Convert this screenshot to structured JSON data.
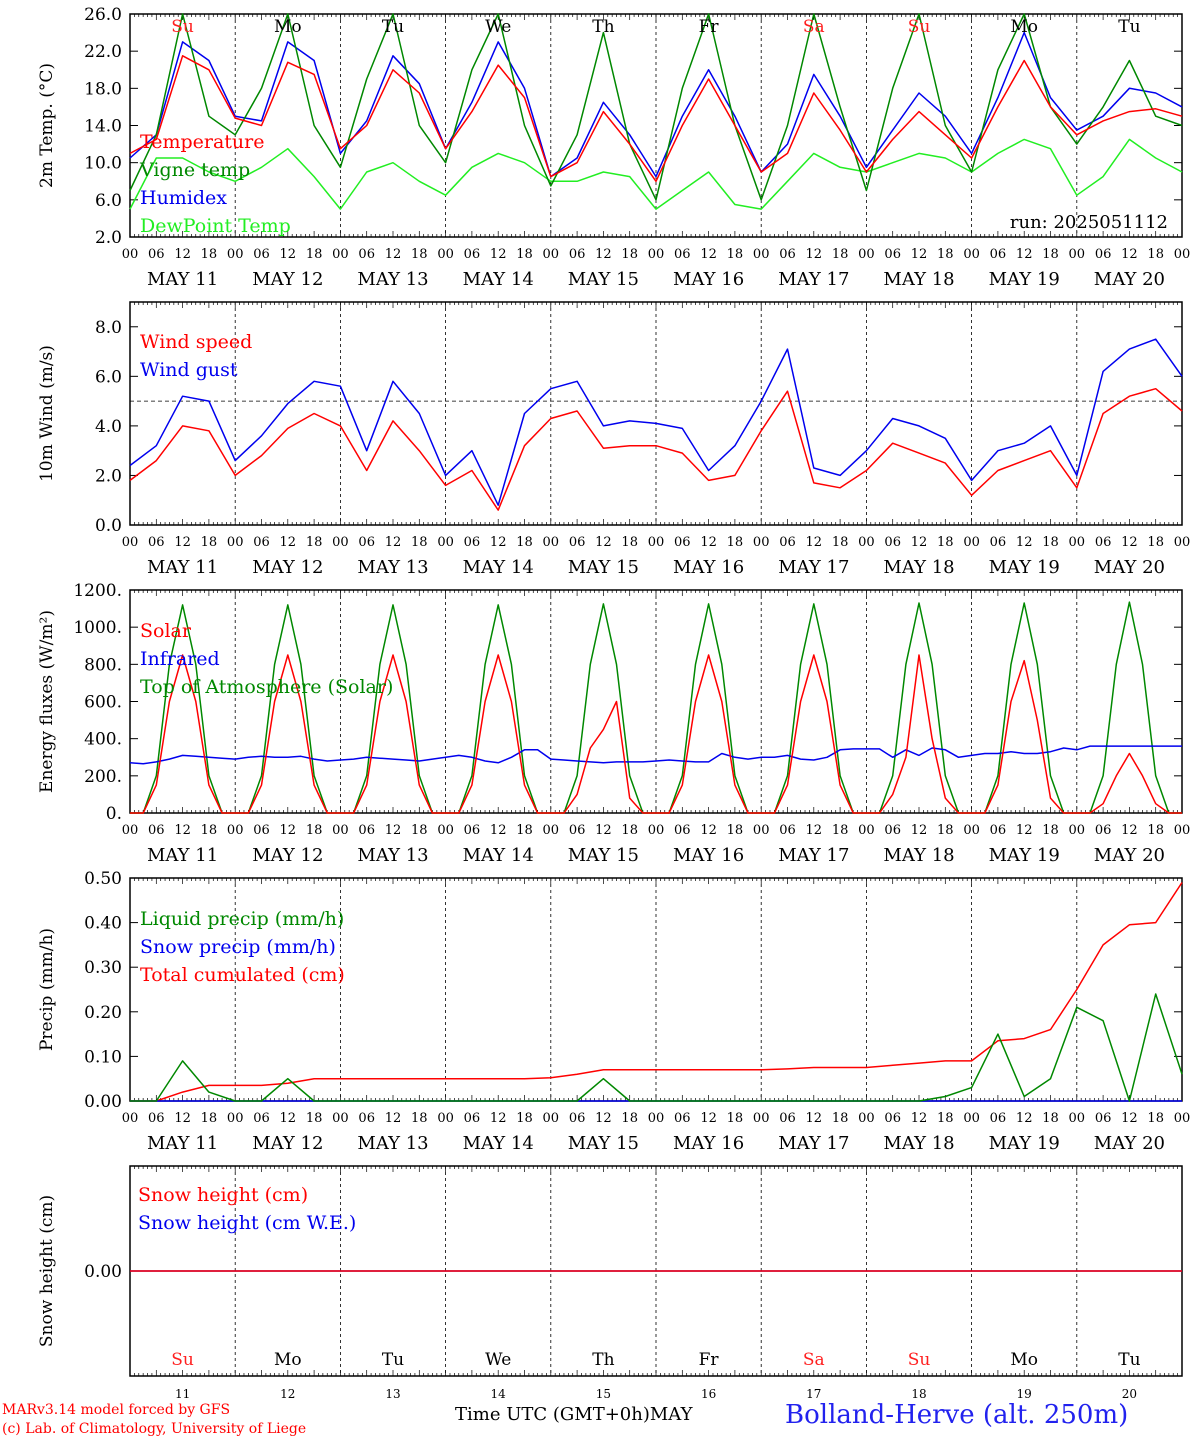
{
  "meta": {
    "run_label": "run: 2025051112",
    "model_credit": "MARv3.14 model forced by GFS",
    "lab_credit": "(c) Lab. of Climatology, University of Liege",
    "x_axis_title": "Time UTC (GMT+0h)",
    "month_label": "MAY",
    "station": "Bolland-Herve (alt. 250m)"
  },
  "time_axis": {
    "hour_ticks": [
      "00",
      "06",
      "12",
      "18"
    ],
    "date_labels": [
      "MAY 11",
      "MAY 12",
      "MAY 13",
      "MAY 14",
      "MAY 15",
      "MAY 16",
      "MAY 17",
      "MAY 18",
      "MAY 19",
      "MAY 20"
    ],
    "day_names": [
      "Su",
      "Mo",
      "Tu",
      "We",
      "Th",
      "Fr",
      "Sa",
      "Su",
      "Mo",
      "Tu"
    ],
    "day_name_colors": [
      "#ff2020",
      "#000000",
      "#000000",
      "#000000",
      "#000000",
      "#000000",
      "#ff2020",
      "#ff2020",
      "#000000",
      "#000000"
    ],
    "day_numbers": [
      "11",
      "12",
      "13",
      "14",
      "15",
      "16",
      "17",
      "18",
      "19",
      "20"
    ]
  },
  "chart_data": [
    {
      "type": "line",
      "ylabel": "2m Temp. (°C)",
      "ylim": [
        2,
        26
      ],
      "yticks": [
        "2.0",
        "6.0",
        "10.0",
        "14.0",
        "18.0",
        "22.0",
        "26.0"
      ],
      "x_hours": [
        0,
        6,
        12,
        18,
        24,
        30,
        36,
        42,
        48,
        54,
        60,
        66,
        72,
        78,
        84,
        90,
        96,
        102,
        108,
        114,
        120,
        126,
        132,
        138,
        144,
        150,
        156,
        162,
        168,
        174,
        180,
        186,
        192,
        198,
        204,
        210,
        216,
        222,
        228,
        234,
        240
      ],
      "series": [
        {
          "name": "Temperature",
          "color": "#ff0000",
          "values": [
            11.0,
            12.5,
            21.5,
            20.0,
            14.8,
            14.0,
            20.8,
            19.5,
            11.5,
            14.0,
            20.0,
            17.5,
            11.5,
            15.5,
            20.5,
            17.0,
            8.5,
            10.0,
            15.5,
            12.0,
            8.0,
            14.0,
            19.0,
            14.0,
            9.0,
            11.0,
            17.5,
            13.5,
            9.0,
            12.5,
            15.5,
            13.0,
            10.5,
            16.0,
            21.0,
            16.0,
            13.0,
            14.5,
            15.5,
            15.8,
            15.0
          ]
        },
        {
          "name": "Vigne temp",
          "color": "#008800",
          "values": [
            7.0,
            13.0,
            26.0,
            15.0,
            13.0,
            18.0,
            26.0,
            14.0,
            9.5,
            19.0,
            26.0,
            14.0,
            10.0,
            20.0,
            26.0,
            14.0,
            7.5,
            13.0,
            24.0,
            12.0,
            6.0,
            18.0,
            26.0,
            14.0,
            6.0,
            14.0,
            26.0,
            16.0,
            7.0,
            18.0,
            26.0,
            14.0,
            9.0,
            20.0,
            26.0,
            16.0,
            12.0,
            16.0,
            21.0,
            15.0,
            14.0
          ]
        },
        {
          "name": "Humidex",
          "color": "#0000ee",
          "values": [
            10.5,
            13.0,
            23.0,
            21.0,
            15.0,
            14.5,
            23.0,
            21.0,
            11.0,
            14.5,
            21.5,
            18.5,
            11.5,
            16.5,
            23.0,
            18.0,
            8.5,
            10.5,
            16.5,
            13.0,
            8.5,
            15.0,
            20.0,
            15.0,
            9.0,
            12.0,
            19.5,
            15.0,
            9.5,
            13.5,
            17.5,
            15.0,
            11.0,
            17.0,
            24.0,
            17.0,
            13.5,
            15.0,
            18.0,
            17.5,
            16.0
          ]
        },
        {
          "name": "DewPoint Temp",
          "color": "#22ee22",
          "values": [
            5.0,
            10.5,
            10.5,
            9.0,
            8.0,
            9.5,
            11.5,
            8.5,
            5.0,
            9.0,
            10.0,
            8.0,
            6.5,
            9.5,
            11.0,
            10.0,
            8.0,
            8.0,
            9.0,
            8.5,
            5.0,
            7.0,
            9.0,
            5.5,
            5.0,
            8.0,
            11.0,
            9.5,
            9.0,
            10.0,
            11.0,
            10.5,
            9.0,
            11.0,
            12.5,
            11.5,
            6.5,
            8.5,
            12.5,
            10.5,
            9.0
          ]
        }
      ]
    },
    {
      "type": "line",
      "ylabel": "10m Wind (m/s)",
      "ylim": [
        0,
        9
      ],
      "yticks": [
        "0.0",
        "2.0",
        "4.0",
        "6.0",
        "8.0"
      ],
      "reference_line": 5,
      "x_hours": [
        0,
        6,
        12,
        18,
        24,
        30,
        36,
        42,
        48,
        54,
        60,
        66,
        72,
        78,
        84,
        90,
        96,
        102,
        108,
        114,
        120,
        126,
        132,
        138,
        144,
        150,
        156,
        162,
        168,
        174,
        180,
        186,
        192,
        198,
        204,
        210,
        216,
        222,
        228,
        234,
        240
      ],
      "series": [
        {
          "name": "Wind speed",
          "color": "#ff0000",
          "values": [
            1.8,
            2.6,
            4.0,
            3.8,
            2.0,
            2.8,
            3.9,
            4.5,
            4.0,
            2.2,
            4.2,
            3.0,
            1.6,
            2.2,
            0.6,
            3.2,
            4.3,
            4.6,
            3.1,
            3.2,
            3.2,
            2.9,
            1.8,
            2.0,
            3.8,
            5.4,
            1.7,
            1.5,
            2.2,
            3.3,
            2.9,
            2.5,
            1.2,
            2.2,
            2.6,
            3.0,
            1.5,
            4.5,
            5.2,
            5.5,
            4.6
          ]
        },
        {
          "name": "Wind gust",
          "color": "#0000ee",
          "values": [
            2.4,
            3.2,
            5.2,
            5.0,
            2.6,
            3.6,
            4.9,
            5.8,
            5.6,
            3.0,
            5.8,
            4.5,
            2.0,
            3.0,
            0.8,
            4.5,
            5.5,
            5.8,
            4.0,
            4.2,
            4.1,
            3.9,
            2.2,
            3.2,
            5.0,
            7.1,
            2.3,
            2.0,
            3.0,
            4.3,
            4.0,
            3.5,
            1.8,
            3.0,
            3.3,
            4.0,
            2.0,
            6.2,
            7.1,
            7.5,
            6.0
          ]
        }
      ]
    },
    {
      "type": "line",
      "ylabel": "Energy fluxes (W/m²)",
      "ylim": [
        0,
        1200
      ],
      "yticks": [
        "0.",
        "200.",
        "400.",
        "600.",
        "800.",
        "1000.",
        "1200."
      ],
      "x_hours": [
        0,
        3,
        6,
        9,
        12,
        15,
        18,
        21,
        24,
        27,
        30,
        33,
        36,
        39,
        42,
        45,
        48,
        51,
        54,
        57,
        60,
        63,
        66,
        69,
        72,
        75,
        78,
        81,
        84,
        87,
        90,
        93,
        96,
        99,
        102,
        105,
        108,
        111,
        114,
        117,
        120,
        123,
        126,
        129,
        132,
        135,
        138,
        141,
        144,
        147,
        150,
        153,
        156,
        159,
        162,
        165,
        168,
        171,
        174,
        177,
        180,
        183,
        186,
        189,
        192,
        195,
        198,
        201,
        204,
        207,
        210,
        213,
        216,
        219,
        222,
        225,
        228,
        231,
        234,
        237,
        240
      ],
      "series": [
        {
          "name": "Solar",
          "color": "#ff0000",
          "values": [
            0,
            0,
            150,
            600,
            850,
            600,
            150,
            0,
            0,
            0,
            150,
            600,
            850,
            600,
            150,
            0,
            0,
            0,
            150,
            600,
            850,
            600,
            150,
            0,
            0,
            0,
            150,
            600,
            850,
            600,
            150,
            0,
            0,
            0,
            100,
            350,
            450,
            600,
            80,
            0,
            0,
            0,
            150,
            600,
            850,
            600,
            150,
            0,
            0,
            0,
            150,
            600,
            850,
            600,
            150,
            0,
            0,
            0,
            100,
            300,
            850,
            400,
            80,
            0,
            0,
            0,
            150,
            600,
            820,
            500,
            80,
            0,
            0,
            0,
            50,
            200,
            320,
            200,
            50,
            0,
            0
          ]
        },
        {
          "name": "Infrared",
          "color": "#0000ee",
          "values": [
            270,
            265,
            275,
            290,
            310,
            305,
            300,
            295,
            290,
            300,
            305,
            300,
            300,
            305,
            290,
            280,
            285,
            290,
            300,
            295,
            290,
            285,
            280,
            290,
            300,
            310,
            300,
            280,
            270,
            300,
            340,
            340,
            290,
            285,
            280,
            275,
            270,
            275,
            275,
            275,
            280,
            285,
            280,
            275,
            275,
            320,
            300,
            290,
            300,
            300,
            310,
            290,
            285,
            300,
            340,
            345,
            345,
            345,
            300,
            340,
            310,
            350,
            340,
            300,
            310,
            320,
            320,
            330,
            320,
            320,
            330,
            350,
            340,
            360,
            360,
            360,
            360,
            360,
            360,
            360,
            360
          ]
        },
        {
          "name": "Top of Atmosphere (Solar)",
          "color": "#008800",
          "values": [
            0,
            0,
            200,
            800,
            1120,
            800,
            200,
            0,
            0,
            0,
            200,
            800,
            1120,
            800,
            200,
            0,
            0,
            0,
            200,
            800,
            1120,
            800,
            200,
            0,
            0,
            0,
            200,
            800,
            1120,
            800,
            200,
            0,
            0,
            0,
            200,
            800,
            1125,
            800,
            200,
            0,
            0,
            0,
            200,
            800,
            1125,
            800,
            200,
            0,
            0,
            0,
            200,
            800,
            1125,
            800,
            200,
            0,
            0,
            0,
            200,
            800,
            1130,
            800,
            200,
            0,
            0,
            0,
            200,
            800,
            1130,
            800,
            200,
            0,
            0,
            0,
            200,
            800,
            1135,
            800,
            200,
            0,
            0
          ]
        }
      ]
    },
    {
      "type": "line",
      "ylabel": "Precip (mm/h)",
      "ylim": [
        0,
        0.5
      ],
      "yticks": [
        "0.00",
        "0.10",
        "0.20",
        "0.30",
        "0.40",
        "0.50"
      ],
      "x_hours": [
        0,
        6,
        12,
        18,
        24,
        30,
        36,
        42,
        48,
        54,
        60,
        66,
        72,
        78,
        84,
        90,
        96,
        102,
        108,
        114,
        120,
        126,
        132,
        138,
        144,
        150,
        156,
        162,
        168,
        174,
        180,
        186,
        192,
        198,
        204,
        210,
        216,
        222,
        228,
        234,
        240
      ],
      "series": [
        {
          "name": "Liquid precip (mm/h)",
          "color": "#008800",
          "values": [
            0,
            0,
            0.09,
            0.02,
            0,
            0,
            0.05,
            0,
            0,
            0,
            0,
            0,
            0,
            0,
            0,
            0,
            0,
            0,
            0.05,
            0,
            0,
            0,
            0,
            0,
            0,
            0,
            0,
            0,
            0,
            0,
            0,
            0.01,
            0.03,
            0.15,
            0.01,
            0.05,
            0.21,
            0.18,
            0,
            0.24,
            0.06
          ]
        },
        {
          "name": "Snow precip (mm/h)",
          "color": "#0000ee",
          "values": [
            0,
            0,
            0,
            0,
            0,
            0,
            0,
            0,
            0,
            0,
            0,
            0,
            0,
            0,
            0,
            0,
            0,
            0,
            0,
            0,
            0,
            0,
            0,
            0,
            0,
            0,
            0,
            0,
            0,
            0,
            0,
            0,
            0,
            0,
            0,
            0,
            0,
            0,
            0,
            0,
            0
          ]
        },
        {
          "name": "Total cumulated (cm)",
          "color": "#ff0000",
          "values": [
            0,
            0,
            0.02,
            0.035,
            0.035,
            0.035,
            0.04,
            0.05,
            0.05,
            0.05,
            0.05,
            0.05,
            0.05,
            0.05,
            0.05,
            0.05,
            0.052,
            0.06,
            0.07,
            0.07,
            0.07,
            0.07,
            0.07,
            0.07,
            0.07,
            0.072,
            0.075,
            0.075,
            0.075,
            0.08,
            0.085,
            0.09,
            0.09,
            0.135,
            0.14,
            0.16,
            0.25,
            0.35,
            0.395,
            0.4,
            0.49
          ]
        }
      ]
    },
    {
      "type": "line",
      "ylabel": "Snow height (cm)",
      "ylim": [
        -1,
        1
      ],
      "yticks": [
        "0.00"
      ],
      "x_hours": [
        0,
        240
      ],
      "series": [
        {
          "name": "Snow height (cm)",
          "color": "#ff0000",
          "values": [
            0,
            0
          ]
        },
        {
          "name": "Snow height (cm W.E.)",
          "color": "#0000ee",
          "values": [
            0,
            0
          ]
        }
      ]
    }
  ]
}
